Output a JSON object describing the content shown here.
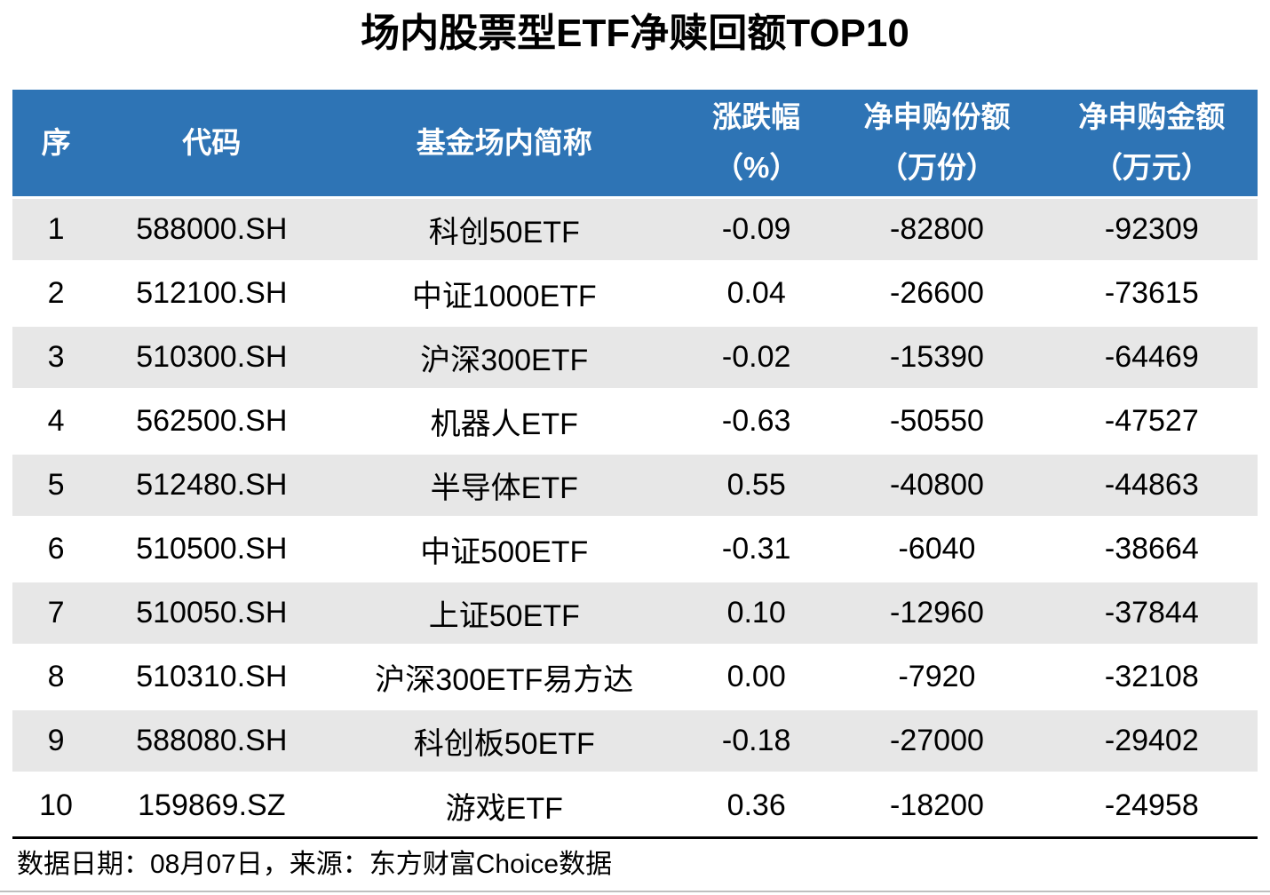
{
  "title": "场内股票型ETF净赎回额TOP10",
  "colors": {
    "header_bg": "#2E74B5",
    "header_text": "#FFFFFF",
    "row_alt_bg": "#E7E7E7",
    "body_text": "#000000",
    "divider": "#000000",
    "bottom_rule": "#BFBFBF"
  },
  "table": {
    "columns": [
      {
        "key": "rank",
        "label": "序",
        "sublabel": ""
      },
      {
        "key": "code",
        "label": "代码",
        "sublabel": ""
      },
      {
        "key": "name",
        "label": "基金场内简称",
        "sublabel": ""
      },
      {
        "key": "change",
        "label": "涨跌幅",
        "sublabel": "（%）"
      },
      {
        "key": "shares",
        "label": "净申购份额",
        "sublabel": "（万份）"
      },
      {
        "key": "amount",
        "label": "净申购金额",
        "sublabel": "（万元）"
      }
    ],
    "rows": [
      [
        "1",
        "588000.SH",
        "科创50ETF",
        "-0.09",
        "-82800",
        "-92309"
      ],
      [
        "2",
        "512100.SH",
        "中证1000ETF",
        "0.04",
        "-26600",
        "-73615"
      ],
      [
        "3",
        "510300.SH",
        "沪深300ETF",
        "-0.02",
        "-15390",
        "-64469"
      ],
      [
        "4",
        "562500.SH",
        "机器人ETF",
        "-0.63",
        "-50550",
        "-47527"
      ],
      [
        "5",
        "512480.SH",
        "半导体ETF",
        "0.55",
        "-40800",
        "-44863"
      ],
      [
        "6",
        "510500.SH",
        "中证500ETF",
        "-0.31",
        "-6040",
        "-38664"
      ],
      [
        "7",
        "510050.SH",
        "上证50ETF",
        "0.10",
        "-12960",
        "-37844"
      ],
      [
        "8",
        "510310.SH",
        "沪深300ETF易方达",
        "0.00",
        "-7920",
        "-32108"
      ],
      [
        "9",
        "588080.SH",
        "科创板50ETF",
        "-0.18",
        "-27000",
        "-29402"
      ],
      [
        "10",
        "159869.SZ",
        "游戏ETF",
        "0.36",
        "-18200",
        "-24958"
      ]
    ]
  },
  "footer": {
    "text": "数据日期：08月07日，来源：东方财富Choice数据"
  },
  "chart_data": {
    "type": "table",
    "title": "场内股票型ETF净赎回额TOP10",
    "columns": [
      "序",
      "代码",
      "基金场内简称",
      "涨跌幅（%）",
      "净申购份额（万份）",
      "净申购金额（万元）"
    ],
    "rows": [
      [
        1,
        "588000.SH",
        "科创50ETF",
        -0.09,
        -82800,
        -92309
      ],
      [
        2,
        "512100.SH",
        "中证1000ETF",
        0.04,
        -26600,
        -73615
      ],
      [
        3,
        "510300.SH",
        "沪深300ETF",
        -0.02,
        -15390,
        -64469
      ],
      [
        4,
        "562500.SH",
        "机器人ETF",
        -0.63,
        -50550,
        -47527
      ],
      [
        5,
        "512480.SH",
        "半导体ETF",
        0.55,
        -40800,
        -44863
      ],
      [
        6,
        "510500.SH",
        "中证500ETF",
        -0.31,
        -6040,
        -38664
      ],
      [
        7,
        "510050.SH",
        "上证50ETF",
        0.1,
        -12960,
        -37844
      ],
      [
        8,
        "510310.SH",
        "沪深300ETF易方达",
        0.0,
        -7920,
        -32108
      ],
      [
        9,
        "588080.SH",
        "科创板50ETF",
        -0.18,
        -27000,
        -29402
      ],
      [
        10,
        "159869.SZ",
        "游戏ETF",
        0.36,
        -18200,
        -24958
      ]
    ],
    "source_note": "数据日期：08月07日，来源：东方财富Choice数据"
  }
}
